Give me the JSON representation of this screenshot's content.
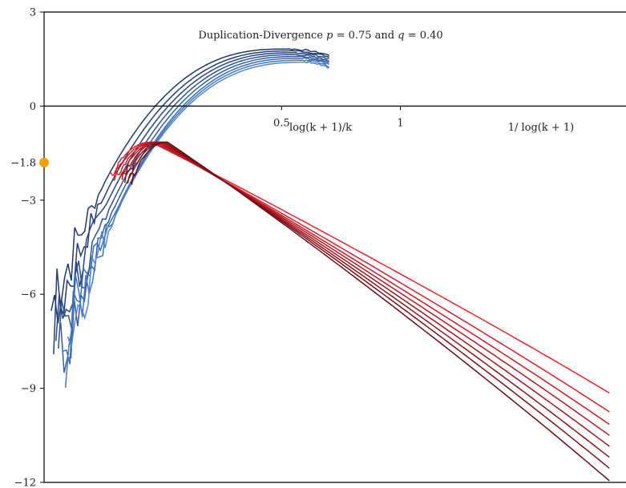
{
  "chart_data": {
    "type": "line",
    "title": "Duplication-Divergence p = 0.75 and q = 0.40",
    "title_parts": [
      "Duplication-Divergence ",
      "p",
      " = 0.75 and ",
      "q",
      " = 0.40"
    ],
    "xlabel_secondary": "log(k + 1)/k",
    "xlabel_primary": "1/ log(k + 1)",
    "xlim": [
      -0.5,
      1.95
    ],
    "ylim": [
      -12,
      3
    ],
    "x_ticks": [
      {
        "value": 0.5,
        "label": "0.5"
      },
      {
        "value": 1,
        "label": "1"
      }
    ],
    "y_ticks": [
      {
        "value": 3,
        "label": "3"
      },
      {
        "value": 0,
        "label": "0"
      },
      {
        "value": -1.8,
        "label": "−1.8"
      },
      {
        "value": -3,
        "label": "−3"
      },
      {
        "value": -6,
        "label": "−6"
      },
      {
        "value": -9,
        "label": "−9"
      },
      {
        "value": -12,
        "label": "−12"
      }
    ],
    "marker": {
      "x": -0.5,
      "y": -1.8,
      "color": "#f5a000"
    },
    "blue_series": {
      "x_start": [
        -0.47,
        -0.46,
        -0.45,
        -0.44,
        -0.43,
        -0.42,
        -0.41,
        -0.4
      ],
      "y_start": [
        -6.5,
        -6.9,
        -7.3,
        -7.6,
        -7.8,
        -7.9,
        -7.6,
        -7.3
      ],
      "x_peak": [
        0.52,
        0.54,
        0.55,
        0.56,
        0.57,
        0.58,
        0.59,
        0.6
      ],
      "y_peak": [
        1.82,
        1.76,
        1.7,
        1.64,
        1.58,
        1.52,
        1.46,
        1.4
      ],
      "x_end": 0.7,
      "y_end_offset": -0.2,
      "colors": [
        "#1e3a6a",
        "#243f78",
        "#284784",
        "#2e528f",
        "#345f9f",
        "#3b6cb0",
        "#4478c0",
        "#4f86d0"
      ]
    },
    "red_series": {
      "x_start": -0.22,
      "x_end": 1.88,
      "peak_x": [
        -0.05,
        -0.04,
        -0.03,
        -0.02,
        -0.01,
        0.0,
        0.01,
        0.02
      ],
      "peak_y": -1.15,
      "start_y": [
        -2.25,
        -2.3,
        -2.32,
        -2.35,
        -2.33,
        -2.38,
        -2.36,
        -2.4
      ],
      "end_y": [
        -9.15,
        -9.75,
        -10.15,
        -10.5,
        -10.85,
        -11.2,
        -11.55,
        -11.95
      ],
      "colors": [
        "#e8232a",
        "#d81f27",
        "#c81b24",
        "#b41820",
        "#a0151d",
        "#8c131a",
        "#781117",
        "#680f14"
      ]
    }
  }
}
